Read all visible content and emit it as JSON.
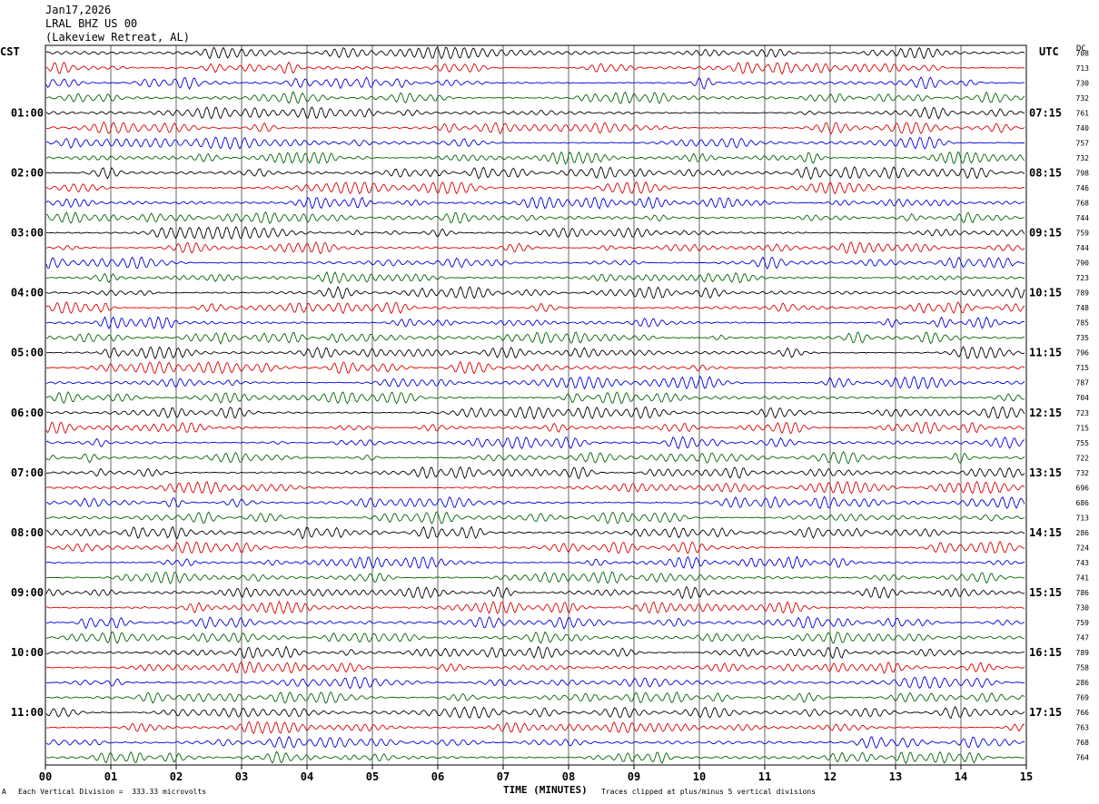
{
  "header": {
    "date": "Jan17,2026",
    "station": "LRAL BHZ US 00",
    "location": "(Lakeview Retreat, AL)"
  },
  "left_label": "CST",
  "right_label": "UTC",
  "dc_label": "DC",
  "footer": {
    "scale": "Each Vertical Division =  333.33 microvolts",
    "clip": "Traces clipped at plus/minus 5 vertical divisions",
    "mark": "A"
  },
  "chart_data": {
    "type": "line",
    "xlabel": "TIME (MINUTES)",
    "xlim": [
      0,
      15
    ],
    "x_ticks": [
      "00",
      "01",
      "02",
      "03",
      "04",
      "05",
      "06",
      "07",
      "08",
      "09",
      "10",
      "11",
      "12",
      "13",
      "14",
      "15"
    ],
    "left_hour_labels": [
      "01:00",
      "02:00",
      "03:00",
      "04:00",
      "05:00",
      "06:00",
      "07:00",
      "08:00",
      "09:00",
      "10:00",
      "11:00"
    ],
    "right_hour_labels": [
      "07:15",
      "08:15",
      "09:15",
      "10:15",
      "11:15",
      "12:15",
      "13:15",
      "14:15",
      "15:15",
      "16:15",
      "17:15"
    ],
    "trace_colors": [
      "#000000",
      "#dd0000",
      "#0000dd",
      "#006600"
    ],
    "dc_values": [
      "708",
      "713",
      "730",
      "732",
      "761",
      "740",
      "757",
      "732",
      "798",
      "746",
      "768",
      "744",
      "759",
      "744",
      "790",
      "723",
      "789",
      "748",
      "785",
      "735",
      "796",
      "715",
      "787",
      "704",
      "723",
      "715",
      "755",
      "722",
      "732",
      "696",
      "686",
      "713",
      "286",
      "724",
      "743",
      "741",
      "786",
      "730",
      "759",
      "747",
      "789",
      "758",
      "286",
      "769",
      "766",
      "763",
      "768",
      "764"
    ]
  }
}
